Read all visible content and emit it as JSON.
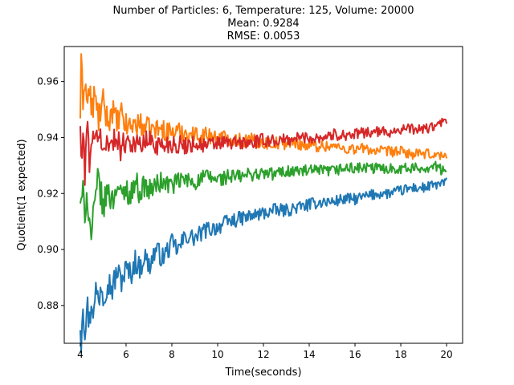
{
  "chart_data": {
    "type": "line",
    "title_lines": [
      "Number of Particles: 6, Temperature: 125, Volume: 20000",
      "Mean: 0.9284",
      "RMSE: 0.0053"
    ],
    "xlabel": "Time(seconds)",
    "ylabel": "Quotient(1 expected)",
    "xlim": [
      3.3,
      20.7
    ],
    "ylim": [
      0.8665,
      0.9725
    ],
    "x_ticks": [
      4,
      6,
      8,
      10,
      12,
      14,
      16,
      18,
      20
    ],
    "y_ticks": [
      0.88,
      0.9,
      0.92,
      0.94,
      0.96
    ],
    "y_tick_labels": [
      "0.88",
      "0.90",
      "0.92",
      "0.94",
      "0.96"
    ],
    "grid": false,
    "x_start": 4,
    "x_end": 20,
    "series": [
      {
        "color": "#1f77b4",
        "points": [
          [
            4.0,
            0.874
          ],
          [
            4.05,
            0.867
          ],
          [
            4.1,
            0.884
          ],
          [
            4.2,
            0.872
          ],
          [
            4.3,
            0.88
          ],
          [
            4.4,
            0.874
          ],
          [
            4.5,
            0.883
          ],
          [
            4.6,
            0.877
          ],
          [
            4.7,
            0.887
          ],
          [
            4.8,
            0.881
          ],
          [
            4.9,
            0.889
          ],
          [
            5.0,
            0.884
          ],
          [
            5.2,
            0.889
          ],
          [
            5.4,
            0.886
          ],
          [
            5.6,
            0.892
          ],
          [
            5.8,
            0.889
          ],
          [
            6.0,
            0.893
          ],
          [
            6.2,
            0.891
          ],
          [
            6.4,
            0.896
          ],
          [
            6.6,
            0.893
          ],
          [
            6.8,
            0.898
          ],
          [
            7.0,
            0.894
          ],
          [
            7.3,
            0.9
          ],
          [
            7.6,
            0.897
          ],
          [
            8.0,
            0.902
          ],
          [
            8.3,
            0.9
          ],
          [
            8.6,
            0.905
          ],
          [
            9.0,
            0.904
          ],
          [
            9.5,
            0.907
          ],
          [
            10.0,
            0.908
          ],
          [
            10.5,
            0.91
          ],
          [
            11.0,
            0.911
          ],
          [
            11.5,
            0.912
          ],
          [
            12.0,
            0.913
          ],
          [
            12.5,
            0.914
          ],
          [
            13.0,
            0.914
          ],
          [
            13.5,
            0.915
          ],
          [
            14.0,
            0.916
          ],
          [
            14.5,
            0.917
          ],
          [
            15.0,
            0.917
          ],
          [
            15.5,
            0.918
          ],
          [
            16.0,
            0.918
          ],
          [
            16.5,
            0.919
          ],
          [
            17.0,
            0.92
          ],
          [
            17.5,
            0.92
          ],
          [
            18.0,
            0.921
          ],
          [
            18.5,
            0.922
          ],
          [
            19.0,
            0.922
          ],
          [
            19.5,
            0.923
          ],
          [
            20.0,
            0.924
          ]
        ]
      },
      {
        "color": "#ff7f0e",
        "points": [
          [
            4.0,
            0.949
          ],
          [
            4.05,
            0.968
          ],
          [
            4.1,
            0.953
          ],
          [
            4.2,
            0.962
          ],
          [
            4.3,
            0.951
          ],
          [
            4.4,
            0.958
          ],
          [
            4.5,
            0.948
          ],
          [
            4.6,
            0.955
          ],
          [
            4.8,
            0.947
          ],
          [
            5.0,
            0.952
          ],
          [
            5.2,
            0.946
          ],
          [
            5.4,
            0.95
          ],
          [
            5.6,
            0.945
          ],
          [
            5.8,
            0.948
          ],
          [
            6.0,
            0.944
          ],
          [
            6.5,
            0.945
          ],
          [
            7.0,
            0.943
          ],
          [
            7.5,
            0.943
          ],
          [
            8.0,
            0.942
          ],
          [
            8.5,
            0.942
          ],
          [
            9.0,
            0.941
          ],
          [
            9.5,
            0.941
          ],
          [
            10.0,
            0.94
          ],
          [
            10.5,
            0.94
          ],
          [
            11.0,
            0.939
          ],
          [
            11.5,
            0.939
          ],
          [
            12.0,
            0.938
          ],
          [
            12.5,
            0.938
          ],
          [
            13.0,
            0.938
          ],
          [
            13.5,
            0.938
          ],
          [
            14.0,
            0.937
          ],
          [
            14.5,
            0.937
          ],
          [
            15.0,
            0.937
          ],
          [
            15.5,
            0.936
          ],
          [
            16.0,
            0.936
          ],
          [
            16.5,
            0.936
          ],
          [
            17.0,
            0.935
          ],
          [
            17.5,
            0.935
          ],
          [
            18.0,
            0.935
          ],
          [
            18.5,
            0.934
          ],
          [
            19.0,
            0.934
          ],
          [
            19.5,
            0.934
          ],
          [
            20.0,
            0.933
          ]
        ]
      },
      {
        "color": "#2ca02c",
        "points": [
          [
            4.0,
            0.918
          ],
          [
            4.05,
            0.913
          ],
          [
            4.1,
            0.92
          ],
          [
            4.2,
            0.915
          ],
          [
            4.3,
            0.921
          ],
          [
            4.4,
            0.909
          ],
          [
            4.5,
            0.905
          ],
          [
            4.6,
            0.913
          ],
          [
            4.8,
            0.926
          ],
          [
            5.0,
            0.914
          ],
          [
            5.2,
            0.922
          ],
          [
            5.4,
            0.917
          ],
          [
            5.6,
            0.924
          ],
          [
            5.8,
            0.918
          ],
          [
            6.0,
            0.922
          ],
          [
            6.2,
            0.919
          ],
          [
            6.4,
            0.925
          ],
          [
            6.6,
            0.92
          ],
          [
            6.8,
            0.923
          ],
          [
            7.0,
            0.921
          ],
          [
            7.5,
            0.924
          ],
          [
            8.0,
            0.923
          ],
          [
            8.5,
            0.925
          ],
          [
            9.0,
            0.924
          ],
          [
            9.5,
            0.926
          ],
          [
            10.0,
            0.925
          ],
          [
            10.5,
            0.926
          ],
          [
            11.0,
            0.926
          ],
          [
            11.5,
            0.927
          ],
          [
            12.0,
            0.927
          ],
          [
            12.5,
            0.927
          ],
          [
            13.0,
            0.928
          ],
          [
            13.5,
            0.928
          ],
          [
            14.0,
            0.928
          ],
          [
            14.5,
            0.928
          ],
          [
            15.0,
            0.928
          ],
          [
            15.5,
            0.929
          ],
          [
            16.0,
            0.929
          ],
          [
            16.5,
            0.929
          ],
          [
            17.0,
            0.929
          ],
          [
            17.5,
            0.929
          ],
          [
            18.0,
            0.929
          ],
          [
            18.5,
            0.929
          ],
          [
            19.0,
            0.929
          ],
          [
            19.5,
            0.93
          ],
          [
            20.0,
            0.927
          ]
        ]
      },
      {
        "color": "#d62728",
        "points": [
          [
            4.0,
            0.945
          ],
          [
            4.05,
            0.927
          ],
          [
            4.1,
            0.94
          ],
          [
            4.2,
            0.929
          ],
          [
            4.3,
            0.945
          ],
          [
            4.4,
            0.932
          ],
          [
            4.5,
            0.942
          ],
          [
            4.6,
            0.935
          ],
          [
            4.8,
            0.944
          ],
          [
            5.0,
            0.933
          ],
          [
            5.2,
            0.941
          ],
          [
            5.4,
            0.936
          ],
          [
            5.6,
            0.942
          ],
          [
            5.8,
            0.935
          ],
          [
            6.0,
            0.94
          ],
          [
            6.5,
            0.937
          ],
          [
            7.0,
            0.939
          ],
          [
            7.5,
            0.937
          ],
          [
            8.0,
            0.938
          ],
          [
            8.5,
            0.937
          ],
          [
            9.0,
            0.938
          ],
          [
            9.5,
            0.937
          ],
          [
            10.0,
            0.938
          ],
          [
            10.5,
            0.938
          ],
          [
            11.0,
            0.938
          ],
          [
            11.5,
            0.938
          ],
          [
            12.0,
            0.939
          ],
          [
            12.5,
            0.939
          ],
          [
            13.0,
            0.939
          ],
          [
            13.5,
            0.94
          ],
          [
            14.0,
            0.94
          ],
          [
            14.5,
            0.94
          ],
          [
            15.0,
            0.941
          ],
          [
            15.5,
            0.941
          ],
          [
            16.0,
            0.941
          ],
          [
            16.5,
            0.942
          ],
          [
            17.0,
            0.942
          ],
          [
            17.5,
            0.942
          ],
          [
            18.0,
            0.943
          ],
          [
            18.5,
            0.943
          ],
          [
            19.0,
            0.943
          ],
          [
            19.5,
            0.944
          ],
          [
            20.0,
            0.946
          ]
        ]
      }
    ]
  }
}
